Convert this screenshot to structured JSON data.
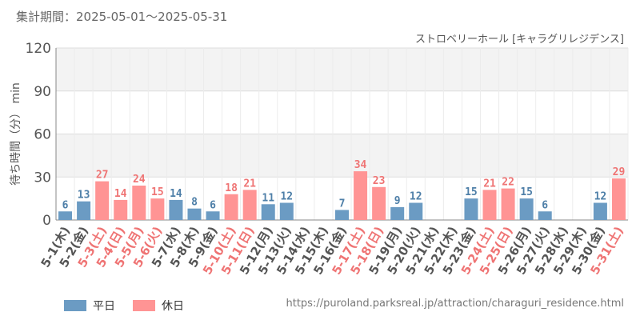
{
  "header": {
    "period": "集計期間：2025-05-01～2025-05-31",
    "attraction": "ストロベリーホール [キャラグリレジデンス]"
  },
  "footer": {
    "source_url": "https://puroland.parksreal.jp/attraction/charaguri_residence.html"
  },
  "legend": {
    "weekday_label": "平日",
    "holiday_label": "休日"
  },
  "colors": {
    "weekday": "#6b9bc3",
    "holiday": "#ff9494",
    "weekday_text": "#4e7fa8",
    "holiday_text": "#ef7474",
    "band": "#f3f3f3"
  },
  "chart_data": {
    "type": "bar",
    "ylabel": "待ち時間（分） min",
    "ylim": [
      0,
      120
    ],
    "yticks": [
      0,
      30,
      60,
      90,
      120
    ],
    "categories": [
      "5-1(木)",
      "5-2(金)",
      "5-3(土)",
      "5-4(日)",
      "5-5(月)",
      "5-6(火)",
      "5-7(水)",
      "5-8(木)",
      "5-9(金)",
      "5-10(土)",
      "5-11(日)",
      "5-12(月)",
      "5-13(火)",
      "5-14(水)",
      "5-15(木)",
      "5-16(金)",
      "5-17(土)",
      "5-18(日)",
      "5-19(月)",
      "5-20(火)",
      "5-21(水)",
      "5-22(木)",
      "5-23(金)",
      "5-24(土)",
      "5-25(日)",
      "5-26(月)",
      "5-27(火)",
      "5-28(水)",
      "5-29(木)",
      "5-30(金)",
      "5-31(土)"
    ],
    "values": [
      6,
      13,
      27,
      14,
      24,
      15,
      14,
      8,
      6,
      18,
      21,
      11,
      12,
      null,
      null,
      7,
      34,
      23,
      9,
      12,
      null,
      null,
      15,
      21,
      22,
      15,
      6,
      null,
      null,
      12,
      29
    ],
    "holiday": [
      false,
      false,
      true,
      true,
      true,
      true,
      false,
      false,
      false,
      true,
      true,
      false,
      false,
      false,
      false,
      false,
      true,
      true,
      false,
      false,
      false,
      false,
      false,
      true,
      true,
      false,
      false,
      false,
      false,
      false,
      true
    ]
  }
}
